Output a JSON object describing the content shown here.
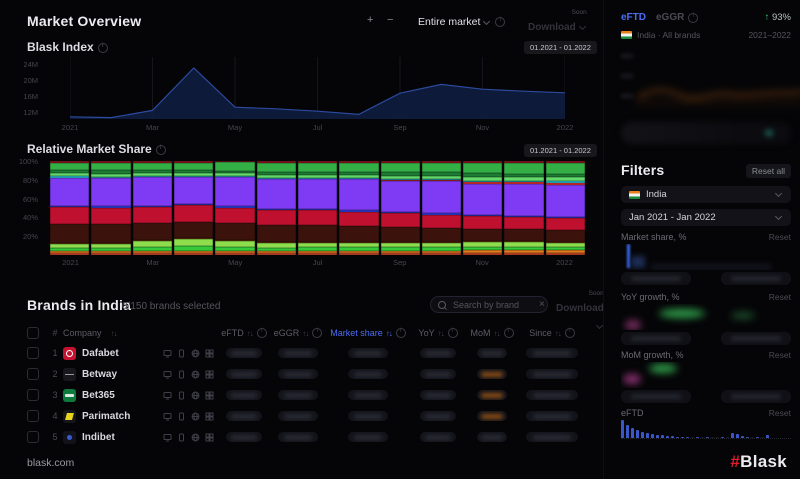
{
  "header": {
    "title": "Market Overview",
    "zoom_in": "+",
    "zoom_out": "−",
    "market_select": "Entire market",
    "download": "Download",
    "soon": "Soon"
  },
  "blask_index": {
    "title": "Blask Index",
    "date_range": "01.2021 - 01.2022"
  },
  "market_share_section": {
    "title": "Relative Market Share",
    "date_range": "01.2021 - 01.2022"
  },
  "brands": {
    "title": "Brands in India",
    "selected_count": "0/150 brands selected",
    "search_placeholder": "Search by brand",
    "download": "Download",
    "soon": "Soon",
    "columns": {
      "company": "Company",
      "eftd": "eFTD",
      "eggr": "eGGR",
      "market_share": "Market share",
      "yoy": "YoY",
      "mom": "MoM",
      "since": "Since"
    },
    "rows": [
      {
        "num": "1",
        "name": "Dafabet",
        "logo": "dafabet",
        "mom_tint": "none"
      },
      {
        "num": "2",
        "name": "Betway",
        "logo": "betway",
        "mom_tint": "orange"
      },
      {
        "num": "3",
        "name": "Bet365",
        "logo": "bet365",
        "mom_tint": "orange"
      },
      {
        "num": "4",
        "name": "Parimatch",
        "logo": "parimatch",
        "mom_tint": "orange"
      },
      {
        "num": "5",
        "name": "Indibet",
        "logo": "indibet",
        "mom_tint": "none"
      }
    ]
  },
  "sidebar": {
    "tab_eftd": "eFTD",
    "tab_eggr": "eGGR",
    "growth_arrow": "↑",
    "growth": "93%",
    "meta_left": "India · All brands",
    "meta_right": "2021–2022",
    "filters": {
      "title": "Filters",
      "reset_all": "Reset all",
      "country": "India",
      "period": "Jan 2021 - Jan 2022",
      "reset": "Reset",
      "block_market_share": "Market share, %",
      "block_yoy": "YoY growth, %",
      "block_mom": "MoM growth, %",
      "block_eftd": "eFTD"
    }
  },
  "footer": {
    "site": "blask.com",
    "logo_hash": "#",
    "logo_name": "Blask"
  },
  "colors": {
    "accent_blue": "#4b6df6",
    "growth_green": "#2ebd6b",
    "logo_red": "#e01a2b",
    "index_line": "#2c4a9e",
    "index_fill": "#101d3f"
  },
  "chart_data": [
    {
      "id": "blask_index",
      "type": "area",
      "title": "Blask Index",
      "x": [
        "Jan 2021",
        "Feb 2021",
        "Mar 2021",
        "Apr 2021",
        "May 2021",
        "Jun 2021",
        "Jul 2021",
        "Aug 2021",
        "Sep 2021",
        "Oct 2021",
        "Nov 2021",
        "Dec 2021",
        "Jan 2022"
      ],
      "values": [
        10.8,
        10.6,
        12.4,
        23.0,
        13.2,
        12.8,
        12.2,
        11.4,
        16.7,
        18.9,
        17.7,
        17.2,
        16.8
      ],
      "unit": "M",
      "ylim": [
        10.25,
        25.75
      ],
      "yticks": [
        {
          "label": "24M",
          "value": 24
        },
        {
          "label": "20M",
          "value": 20
        },
        {
          "label": "16M",
          "value": 16
        },
        {
          "label": "12M",
          "value": 12
        }
      ],
      "xticks": [
        {
          "label": "2021",
          "index": 0
        },
        {
          "label": "Mar",
          "index": 2
        },
        {
          "label": "May",
          "index": 4
        },
        {
          "label": "Jul",
          "index": 6
        },
        {
          "label": "Sep",
          "index": 8
        },
        {
          "label": "Nov",
          "index": 10
        },
        {
          "label": "2022",
          "index": 12
        }
      ],
      "grid": "vertical",
      "legend": "none"
    },
    {
      "id": "relative_market_share",
      "type": "stacked_bar_100",
      "title": "Relative Market Share",
      "categories": [
        "Jan 2021",
        "Feb 2021",
        "Mar 2021",
        "Apr 2021",
        "May 2021",
        "Jun 2021",
        "Jul 2021",
        "Aug 2021",
        "Sep 2021",
        "Oct 2021",
        "Nov 2021",
        "Dec 2021",
        "Jan 2022"
      ],
      "yticks": [
        {
          "label": "100%",
          "pct": 100
        },
        {
          "label": "80%",
          "pct": 80
        },
        {
          "label": "60%",
          "pct": 60
        },
        {
          "label": "40%",
          "pct": 40
        },
        {
          "label": "20%",
          "pct": 20
        }
      ],
      "xticks": [
        {
          "label": "2021",
          "index": 0
        },
        {
          "label": "Mar",
          "index": 2
        },
        {
          "label": "May",
          "index": 4
        },
        {
          "label": "Jul",
          "index": 6
        },
        {
          "label": "Sep",
          "index": 8
        },
        {
          "label": "Nov",
          "index": 10
        },
        {
          "label": "2022",
          "index": 12
        }
      ],
      "series_names": [
        "seg-orange-red",
        "seg-orange",
        "seg-bright-green",
        "seg-lime",
        "seg-brown",
        "seg-maroon",
        "seg-crimson",
        "seg-blue",
        "seg-purple",
        "seg-red-strip",
        "seg-cyan",
        "seg-light-green",
        "seg-dark-green",
        "seg-green",
        "seg-top-red"
      ],
      "series_colors": [
        "#cc4829",
        "#e07b1d",
        "#36c93a",
        "#8edd4d",
        "#6b3a0e",
        "#3c120c",
        "#c01030",
        "#2e3fe0",
        "#7e3bf3",
        "#e03131",
        "#26c2d8",
        "#63d96a",
        "#1d7c33",
        "#33af46",
        "#8e1420"
      ],
      "columns_pct_bottom_to_top": [
        [
          2,
          2,
          3.5,
          4.5,
          1,
          20,
          18,
          1.5,
          30,
          0,
          1.5,
          3,
          3.5,
          8,
          1.5
        ],
        [
          2,
          2,
          3.5,
          4.5,
          1,
          20,
          17.5,
          1.5,
          30.5,
          0,
          1,
          3,
          3.5,
          8.5,
          1.5
        ],
        [
          2,
          2,
          5,
          5.5,
          1,
          18.5,
          17,
          1.5,
          31,
          0,
          1,
          3,
          3,
          8,
          1.5
        ],
        [
          2,
          2,
          6,
          7,
          1,
          17,
          18,
          1.5,
          29,
          0,
          1,
          2.5,
          3,
          8.5,
          1.5
        ],
        [
          2,
          2,
          5,
          6,
          1,
          18,
          16.5,
          1.5,
          31,
          0,
          1,
          3,
          3,
          9,
          1
        ],
        [
          2,
          2,
          4,
          5,
          1,
          18,
          16,
          1.5,
          31,
          0,
          1.5,
          3,
          3.5,
          10,
          1.5
        ],
        [
          2,
          2.5,
          4,
          4.5,
          1,
          18,
          15.5,
          1.5,
          31.5,
          0,
          1.5,
          3,
          3.5,
          10,
          1.5
        ],
        [
          2,
          2.5,
          4,
          4,
          1,
          17.5,
          15,
          1.5,
          33,
          0,
          1.5,
          3,
          3.5,
          10,
          1.5
        ],
        [
          2,
          2.5,
          4,
          4,
          1,
          16.5,
          14.5,
          1.5,
          33,
          0.5,
          1.5,
          3.5,
          3.5,
          10.5,
          1.5
        ],
        [
          2,
          2.5,
          4,
          4,
          1,
          15.5,
          14,
          1.5,
          34,
          1,
          1.5,
          3.5,
          3.5,
          10.5,
          1.5
        ],
        [
          2.5,
          2.5,
          4,
          4.5,
          1,
          13.5,
          13.5,
          1.5,
          33,
          2,
          1,
          4.5,
          3.5,
          11.5,
          1.5
        ],
        [
          2.5,
          2.5,
          4,
          4.5,
          1,
          13,
          13,
          1.5,
          33.5,
          2,
          1,
          4.5,
          3.5,
          12,
          1.5
        ],
        [
          2.5,
          2.5,
          4,
          4,
          1,
          12.5,
          12.5,
          1.5,
          34,
          2.5,
          1.5,
          4.5,
          3.5,
          12,
          1.5
        ]
      ]
    },
    {
      "id": "eftd_filter_histogram",
      "type": "bar",
      "values": [
        18,
        13,
        10,
        8,
        6,
        5,
        4,
        3,
        3,
        2,
        2,
        1,
        1,
        1,
        0,
        1,
        0,
        1,
        0,
        0,
        1,
        0,
        5,
        4,
        2,
        1,
        0,
        1,
        0,
        3
      ],
      "color": "#3a57c9"
    }
  ]
}
